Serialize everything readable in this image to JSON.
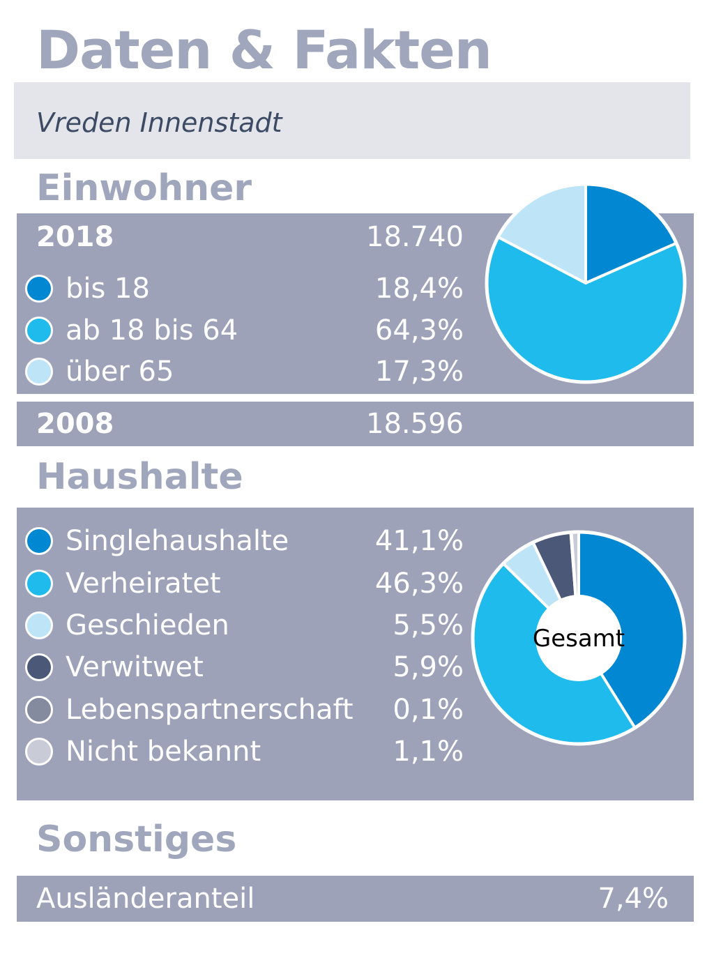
{
  "title": "Daten & Fakten",
  "subtitle": "Vreden Innenstadt",
  "sections": {
    "einwohner": "Einwohner",
    "haushalte": "Haushalte",
    "sonstiges": "Sonstiges"
  },
  "einwohner": {
    "year_current": "2018",
    "total_current": "18.740",
    "year_previous": "2008",
    "total_previous": "18.596",
    "rows": [
      {
        "label": "bis 18",
        "value": "18,4%",
        "color": "#0287d2"
      },
      {
        "label": "ab 18 bis 64",
        "value": "64,3%",
        "color": "#1fbbed"
      },
      {
        "label": "über 65",
        "value": "17,3%",
        "color": "#bde4f7"
      }
    ]
  },
  "haushalte": {
    "center_label": "Gesamt",
    "rows": [
      {
        "label": "Singlehaushalte",
        "value": "41,1%",
        "color": "#0287d2"
      },
      {
        "label": "Verheiratet",
        "value": "46,3%",
        "color": "#1fbbed"
      },
      {
        "label": "Geschieden",
        "value": "5,5%",
        "color": "#bde4f7"
      },
      {
        "label": "Verwitwet",
        "value": "5,9%",
        "color": "#4b5878"
      },
      {
        "label": "Lebenspartnerschaft",
        "value": "0,1%",
        "color": "#858b9f"
      },
      {
        "label": "Nicht bekannt",
        "value": "1,1%",
        "color": "#c9cbd7"
      }
    ]
  },
  "sonstiges": {
    "label": "Ausländeranteil",
    "value": "7,4%"
  },
  "chart_data": [
    {
      "type": "pie",
      "categories": [
        "bis 18",
        "ab 18 bis 64",
        "über 65"
      ],
      "values": [
        18.4,
        64.3,
        17.3
      ],
      "colors": [
        "#0287d2",
        "#1fbbed",
        "#bde4f7"
      ]
    },
    {
      "type": "pie",
      "categories": [
        "Singlehaushalte",
        "Verheiratet",
        "Geschieden",
        "Verwitwet",
        "Lebenspartnerschaft",
        "Nicht bekannt"
      ],
      "values": [
        41.1,
        46.3,
        5.5,
        5.9,
        0.1,
        1.1
      ],
      "colors": [
        "#0287d2",
        "#1fbbed",
        "#bde4f7",
        "#4b5878",
        "#858b9f",
        "#c9cbd7"
      ],
      "center_label": "Gesamt"
    }
  ]
}
